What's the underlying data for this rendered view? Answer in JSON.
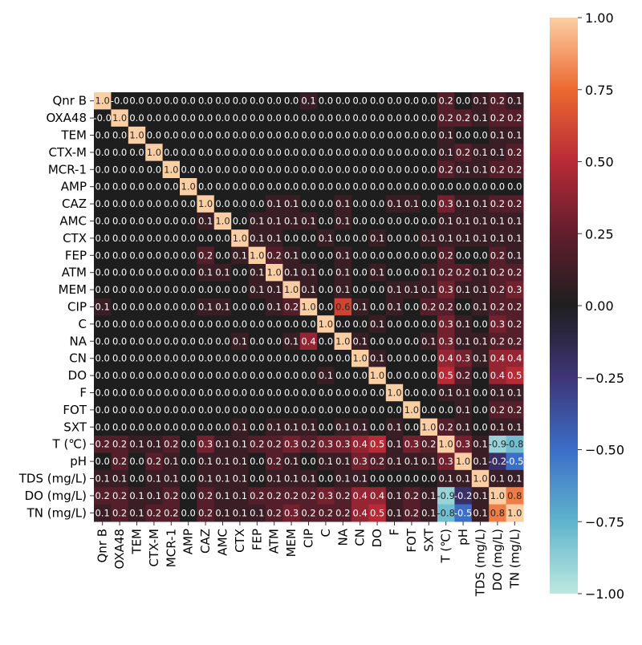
{
  "chart_data": {
    "type": "heatmap",
    "labels": [
      "Qnr B",
      "OXA48",
      "TEM",
      "CTX-M",
      "MCR-1",
      "AMP",
      "CAZ",
      "AMC",
      "CTX",
      "FEP",
      "ATM",
      "MEM",
      "CIP",
      "C",
      "NA",
      "CN",
      "DO",
      "F",
      "FOT",
      "SXT",
      "T  (℃)",
      "pH",
      "TDS (mg/L)",
      "DO (mg/L)",
      "TN (mg/L)"
    ],
    "annotation_format": "one decimal",
    "values": [
      [
        1.0,
        -0.0,
        0.0,
        0.0,
        0.0,
        0.0,
        0.0,
        0.0,
        0.0,
        0.0,
        0.0,
        0.0,
        0.1,
        0.0,
        0.0,
        0.0,
        0.0,
        0.0,
        0.0,
        0.0,
        0.2,
        0.0,
        0.1,
        0.2,
        0.1
      ],
      [
        -0.0,
        1.0,
        0.0,
        0.0,
        0.0,
        0.0,
        0.0,
        0.0,
        0.0,
        0.0,
        0.0,
        0.0,
        0.0,
        0.0,
        0.0,
        0.0,
        0.0,
        0.0,
        0.0,
        0.0,
        0.2,
        0.2,
        0.1,
        0.2,
        0.2
      ],
      [
        0.0,
        0.0,
        1.0,
        0.0,
        0.0,
        0.0,
        0.0,
        0.0,
        0.0,
        0.0,
        0.0,
        0.0,
        0.0,
        0.0,
        0.0,
        0.0,
        0.0,
        0.0,
        0.0,
        0.0,
        0.1,
        0.0,
        0.0,
        0.1,
        0.1
      ],
      [
        0.0,
        0.0,
        0.0,
        1.0,
        0.0,
        0.0,
        0.0,
        0.0,
        0.0,
        0.0,
        0.0,
        0.0,
        0.0,
        0.0,
        0.0,
        0.0,
        0.0,
        0.0,
        0.0,
        0.0,
        0.1,
        0.2,
        0.1,
        0.1,
        0.2
      ],
      [
        0.0,
        0.0,
        0.0,
        0.0,
        1.0,
        0.0,
        0.0,
        0.0,
        0.0,
        0.0,
        0.0,
        0.0,
        0.0,
        0.0,
        0.0,
        0.0,
        0.0,
        0.0,
        0.0,
        0.0,
        0.2,
        0.1,
        0.1,
        0.2,
        0.2
      ],
      [
        0.0,
        0.0,
        0.0,
        0.0,
        0.0,
        1.0,
        0.0,
        0.0,
        0.0,
        0.0,
        0.0,
        0.0,
        0.0,
        0.0,
        0.0,
        0.0,
        0.0,
        0.0,
        0.0,
        0.0,
        0.0,
        0.0,
        0.0,
        0.0,
        0.0
      ],
      [
        0.0,
        0.0,
        0.0,
        0.0,
        0.0,
        0.0,
        1.0,
        0.0,
        0.0,
        0.0,
        0.1,
        0.1,
        0.0,
        0.0,
        0.1,
        0.0,
        0.0,
        0.1,
        0.1,
        0.0,
        0.3,
        0.1,
        0.1,
        0.2,
        0.2
      ],
      [
        0.0,
        0.0,
        0.0,
        0.0,
        0.0,
        0.0,
        0.1,
        1.0,
        0.0,
        0.1,
        0.1,
        0.1,
        0.1,
        0.0,
        0.1,
        0.0,
        0.0,
        0.0,
        0.0,
        0.0,
        0.1,
        0.1,
        0.1,
        0.1,
        0.1
      ],
      [
        0.0,
        0.0,
        0.0,
        0.0,
        0.0,
        0.0,
        0.0,
        0.0,
        1.0,
        0.1,
        0.1,
        0.0,
        0.0,
        0.1,
        0.0,
        0.0,
        0.1,
        0.0,
        0.0,
        0.1,
        0.1,
        0.1,
        0.1,
        0.1,
        0.1
      ],
      [
        0.0,
        0.0,
        0.0,
        0.0,
        0.0,
        0.0,
        0.2,
        0.0,
        0.1,
        1.0,
        0.2,
        0.1,
        0.0,
        0.0,
        0.1,
        0.0,
        0.0,
        0.0,
        0.0,
        0.0,
        0.2,
        0.0,
        0.0,
        0.2,
        0.1
      ],
      [
        0.0,
        0.0,
        0.0,
        0.0,
        0.0,
        0.0,
        0.1,
        0.1,
        0.0,
        0.1,
        1.0,
        0.1,
        0.1,
        0.0,
        0.1,
        0.0,
        0.1,
        0.0,
        0.0,
        0.1,
        0.2,
        0.2,
        0.1,
        0.2,
        0.2
      ],
      [
        0.0,
        0.0,
        0.0,
        0.0,
        0.0,
        0.0,
        0.0,
        0.0,
        0.0,
        0.1,
        0.1,
        1.0,
        0.1,
        0.0,
        0.1,
        0.0,
        0.0,
        0.1,
        0.1,
        0.1,
        0.3,
        0.1,
        0.1,
        0.2,
        0.3
      ],
      [
        0.1,
        0.0,
        0.0,
        0.0,
        0.0,
        0.0,
        0.1,
        0.1,
        0.0,
        0.0,
        0.1,
        0.2,
        1.0,
        0.0,
        0.6,
        0.1,
        0.0,
        0.1,
        0.0,
        0.2,
        0.2,
        0.0,
        0.1,
        0.2,
        0.2
      ],
      [
        0.0,
        0.0,
        0.0,
        0.0,
        0.0,
        0.0,
        0.0,
        0.0,
        0.0,
        0.0,
        0.0,
        0.0,
        0.0,
        1.0,
        0.0,
        0.0,
        0.1,
        0.0,
        0.0,
        0.0,
        0.3,
        0.1,
        0.0,
        0.3,
        0.2
      ],
      [
        0.0,
        0.0,
        0.0,
        0.0,
        0.0,
        0.0,
        0.0,
        0.0,
        0.1,
        0.0,
        0.0,
        0.1,
        0.4,
        0.0,
        1.0,
        0.1,
        0.0,
        0.0,
        0.0,
        0.1,
        0.3,
        0.1,
        0.1,
        0.2,
        0.2
      ],
      [
        0.0,
        0.0,
        0.0,
        0.0,
        0.0,
        0.0,
        0.0,
        0.0,
        0.0,
        0.0,
        0.0,
        0.0,
        0.0,
        0.0,
        0.0,
        1.0,
        0.1,
        0.0,
        0.0,
        0.0,
        0.4,
        0.3,
        0.1,
        0.4,
        0.4
      ],
      [
        0.0,
        0.0,
        0.0,
        0.0,
        0.0,
        0.0,
        0.0,
        0.0,
        0.0,
        0.0,
        0.0,
        0.0,
        0.0,
        0.1,
        0.0,
        0.0,
        1.0,
        0.0,
        0.0,
        0.0,
        0.5,
        0.2,
        0.0,
        0.4,
        0.5
      ],
      [
        0.0,
        0.0,
        0.0,
        0.0,
        0.0,
        0.0,
        0.0,
        0.0,
        0.0,
        0.0,
        0.0,
        0.0,
        0.0,
        0.0,
        0.0,
        0.0,
        0.0,
        1.0,
        0.0,
        0.0,
        0.1,
        0.1,
        0.0,
        0.1,
        0.1
      ],
      [
        0.0,
        0.0,
        0.0,
        0.0,
        0.0,
        0.0,
        0.0,
        0.0,
        0.0,
        0.0,
        0.0,
        0.0,
        0.0,
        0.0,
        0.0,
        0.0,
        0.0,
        0.0,
        1.0,
        0.0,
        0.0,
        0.1,
        0.0,
        0.2,
        0.2
      ],
      [
        0.0,
        0.0,
        0.0,
        0.0,
        0.0,
        0.0,
        0.0,
        0.0,
        0.1,
        0.0,
        0.1,
        0.1,
        0.1,
        0.0,
        0.1,
        0.1,
        0.0,
        0.1,
        0.0,
        1.0,
        0.2,
        0.1,
        0.0,
        0.1,
        0.1
      ],
      [
        0.2,
        0.2,
        0.1,
        0.1,
        0.2,
        0.0,
        0.3,
        0.1,
        0.1,
        0.2,
        0.2,
        0.3,
        0.2,
        0.3,
        0.3,
        0.4,
        0.5,
        0.1,
        0.3,
        0.2,
        1.0,
        0.3,
        0.1,
        -0.9,
        -0.8
      ],
      [
        0.0,
        0.2,
        0.0,
        0.2,
        0.1,
        0.0,
        0.1,
        0.1,
        0.1,
        0.0,
        0.2,
        0.1,
        0.0,
        0.1,
        0.1,
        0.3,
        0.2,
        0.1,
        0.1,
        0.1,
        0.3,
        1.0,
        0.1,
        -0.2,
        -0.5
      ],
      [
        0.1,
        0.1,
        0.0,
        0.1,
        0.1,
        0.0,
        0.1,
        0.1,
        0.1,
        0.0,
        0.1,
        0.1,
        0.1,
        0.0,
        0.1,
        0.1,
        0.0,
        0.0,
        0.0,
        0.0,
        0.1,
        0.1,
        1.0,
        0.1,
        0.1
      ],
      [
        0.2,
        0.2,
        0.1,
        0.1,
        0.2,
        0.0,
        0.2,
        0.1,
        0.1,
        0.2,
        0.2,
        0.2,
        0.2,
        0.3,
        0.2,
        0.4,
        0.4,
        0.1,
        0.2,
        0.1,
        -0.9,
        -0.2,
        0.1,
        1.0,
        0.8
      ],
      [
        0.1,
        0.2,
        0.1,
        0.2,
        0.2,
        0.0,
        0.2,
        0.1,
        0.1,
        0.1,
        0.2,
        0.3,
        0.2,
        0.2,
        0.2,
        0.4,
        0.5,
        0.1,
        0.2,
        0.1,
        -0.8,
        -0.5,
        0.1,
        0.8,
        1.0
      ]
    ],
    "colorbar": {
      "vmin": -1.0,
      "vmax": 1.0,
      "ticks": [
        "1.00",
        "0.75",
        "0.50",
        "0.25",
        "0.00",
        "−0.25",
        "−0.50",
        "−0.75",
        "−1.00"
      ],
      "tick_values": [
        1.0,
        0.75,
        0.5,
        0.25,
        0.0,
        -0.25,
        -0.5,
        -0.75,
        -1.0
      ],
      "colormap": "icefire"
    },
    "grid": false,
    "title": "",
    "xlabel": "",
    "ylabel": ""
  }
}
